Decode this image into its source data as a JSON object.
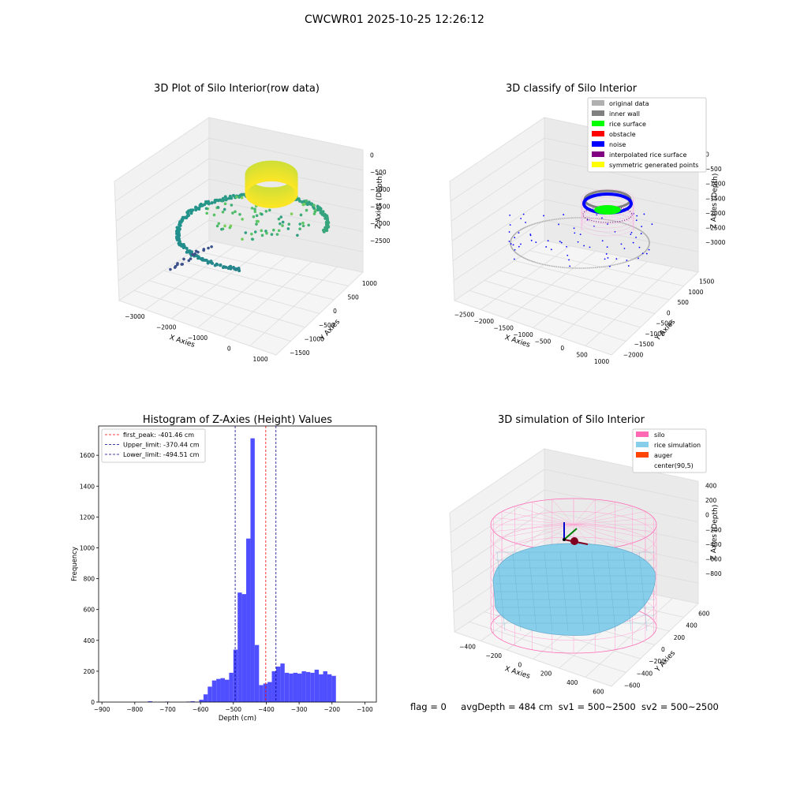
{
  "figure": {
    "title": "CWCWR01 2025-10-25 12:26:12",
    "status_line": {
      "flag": "flag = 0",
      "avg_depth": "avgDepth = 484 cm",
      "sv1": "sv1 = 500~2500",
      "sv2": "sv2 = 500~2500"
    }
  },
  "chart_data": [
    {
      "type": "scatter3d",
      "title": "3D Plot of Silo Interior(row data)",
      "xlabel": "X Axies",
      "ylabel": "Y Axies",
      "zlabel": "Z Axies (Depth)",
      "x_ticks": [
        "−3000",
        "−2000",
        "−1000",
        "0",
        "1000"
      ],
      "y_ticks": [
        "−1500",
        "−1000",
        "−500",
        "0",
        "500",
        "1000"
      ],
      "z_ticks": [
        "0",
        "−500",
        "−1000",
        "−1500",
        "−2000",
        "−2500"
      ],
      "xlim": [
        -3200,
        1300
      ],
      "ylim": [
        -1600,
        1300
      ],
      "zlim": [
        -2900,
        100
      ],
      "colormap": [
        "#440154",
        "#3b528b",
        "#21918c",
        "#5ec962",
        "#fde725"
      ],
      "series": [
        {
          "shape": "ring",
          "cx": 0,
          "cy": 0,
          "r": 420,
          "z_top": -300,
          "z_bottom": -700,
          "color_range": [
            0.95,
            1.0
          ]
        },
        {
          "shape": "curve",
          "cx": -900,
          "cy": -300,
          "r": 1400,
          "z_range": [
            -1200,
            -2700
          ],
          "color_range": [
            0.25,
            0.75
          ]
        }
      ],
      "grid": true
    },
    {
      "type": "scatter3d",
      "title": "3D classify of Silo Interior",
      "xlabel": "X Axies",
      "ylabel": "Y Axies",
      "zlabel": "Z Axies (Depth)",
      "x_ticks": [
        "−2500",
        "−2000",
        "−1500",
        "−1000",
        "−500",
        "0",
        "500",
        "1000"
      ],
      "y_ticks": [
        "−2000",
        "−1500",
        "−1000",
        "−500",
        "0",
        "500",
        "1000",
        "1500"
      ],
      "z_ticks": [
        "0",
        "−500",
        "−1000",
        "−1500",
        "−2000",
        "−2500",
        "−3000"
      ],
      "xlim": [
        -2700,
        1300
      ],
      "ylim": [
        -2200,
        1700
      ],
      "zlim": [
        -3300,
        100
      ],
      "legend": {
        "placement": "top-right",
        "entries": [
          {
            "label": "original data",
            "color": "#b0b0b0"
          },
          {
            "label": "inner wall",
            "color": "#808080"
          },
          {
            "label": "rice surface",
            "color": "#00ff00"
          },
          {
            "label": "obstacle",
            "color": "#ff0000"
          },
          {
            "label": "noise",
            "color": "#0000ff"
          },
          {
            "label": "interpolated rice surface",
            "color": "#800080"
          },
          {
            "label": "symmetric generated points",
            "color": "#ffff00"
          }
        ]
      },
      "grid": true
    },
    {
      "type": "histogram",
      "title": "Histogram of Z-Axies (Height) Values",
      "xlabel": "Depth (cm)",
      "ylabel": "Frequency",
      "xlim": [
        -910,
        -65
      ],
      "ylim": [
        0,
        1790
      ],
      "x_ticks": [
        -900,
        -800,
        -700,
        -600,
        -500,
        -400,
        -300,
        -200,
        -100
      ],
      "y_ticks": [
        0,
        200,
        400,
        600,
        800,
        1000,
        1200,
        1400,
        1600
      ],
      "bar_color": "#4f4fff",
      "bin_start": -760,
      "bin_width": 13,
      "counts": [
        5,
        0,
        0,
        0,
        3,
        0,
        0,
        0,
        0,
        3,
        5,
        2,
        15,
        50,
        100,
        140,
        150,
        155,
        145,
        190,
        340,
        710,
        700,
        1060,
        1710,
        370,
        110,
        120,
        130,
        200,
        230,
        250,
        190,
        185,
        190,
        185,
        200,
        195,
        190,
        210,
        180,
        200,
        180,
        170
      ],
      "lines": [
        {
          "label": "first_peak: -401.46 cm",
          "value": -401.46,
          "color": "#ff0000"
        },
        {
          "label": "Upper_limit: -370.44 cm",
          "value": -370.44,
          "color": "#00008b"
        },
        {
          "label": "Lower_limit: -494.51 cm",
          "value": -494.51,
          "color": "#00008b"
        }
      ],
      "legend_placement": "top-left"
    },
    {
      "type": "surface3d",
      "title": "3D simulation of Silo Interior",
      "xlabel": "X Axies",
      "ylabel": "Y Axies",
      "zlabel": "Z Axies (Depth)",
      "x_ticks": [
        "−400",
        "−200",
        "0",
        "200",
        "400",
        "600"
      ],
      "y_ticks": [
        "−600",
        "−400",
        "−200",
        "0",
        "200",
        "400",
        "600"
      ],
      "z_ticks": [
        "400",
        "200",
        "0",
        "−200",
        "−400",
        "−600",
        "−800"
      ],
      "xlim": [
        -500,
        700
      ],
      "ylim": [
        -700,
        700
      ],
      "zlim": [
        -900,
        450
      ],
      "legend": {
        "placement": "top-right",
        "entries": [
          {
            "label": "silo",
            "color": "#ff69b4"
          },
          {
            "label": "rice simulation",
            "color": "#87ceeb"
          },
          {
            "label": "auger",
            "color": "#ff4500"
          },
          {
            "label": "center(90,5)",
            "color": ""
          }
        ]
      },
      "grid": true
    }
  ]
}
